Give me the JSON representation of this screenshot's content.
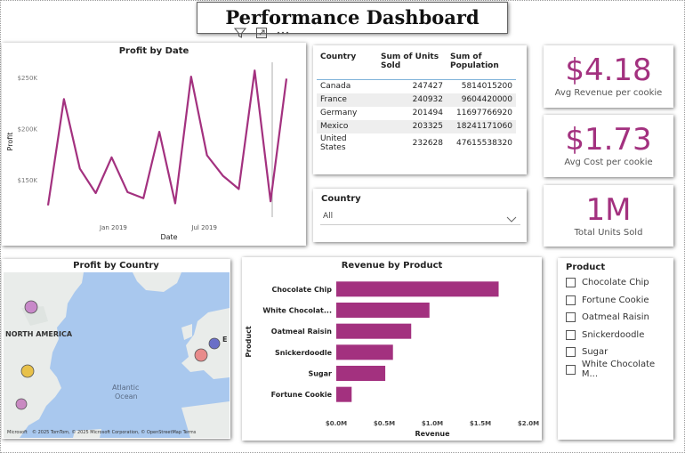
{
  "dashboard": {
    "title": "Performance Dashboard"
  },
  "toolbar": {
    "filter_icon": "filter-icon",
    "focus_icon": "focus-mode-icon",
    "more_icon": "more-options-icon"
  },
  "colors": {
    "accent": "#a3317f",
    "bar": "#a3317f",
    "line": "#a3317f"
  },
  "profit_by_date": {
    "title": "Profit by Date",
    "chart_data": {
      "type": "line",
      "title": "Profit by Date",
      "xlabel": "Date",
      "ylabel": "Profit",
      "x_ticks": [
        "Jan 2019",
        "Jul 2019"
      ],
      "y_ticks": [
        "$250K",
        "$200K",
        "$150K"
      ],
      "y_tick_values": [
        250000,
        200000,
        150000
      ],
      "ylim": [
        110000,
        265000
      ],
      "series": [
        {
          "values": [
            125000,
            229000,
            161000,
            137000,
            172000,
            138000,
            132000,
            197000,
            127000,
            251000,
            174000,
            154000,
            141000,
            257000,
            129000,
            249000
          ]
        }
      ]
    }
  },
  "country_table": {
    "headers": [
      "Country",
      "Sum of Units Sold",
      "Sum of Population"
    ],
    "rows": [
      [
        "Canada",
        "247427",
        "5814015200"
      ],
      [
        "France",
        "240932",
        "9604420000"
      ],
      [
        "Germany",
        "201494",
        "11697766920"
      ],
      [
        "Mexico",
        "203325",
        "18241171060"
      ],
      [
        "United States",
        "232628",
        "47615538320"
      ]
    ]
  },
  "kpis": [
    {
      "value": "$4.18",
      "label": "Avg Revenue per cookie"
    },
    {
      "value": "$1.73",
      "label": "Avg Cost per cookie"
    },
    {
      "value": "1M",
      "label": "Total Units Sold"
    }
  ],
  "country_slicer": {
    "title": "Country",
    "selected": "All"
  },
  "profit_by_country": {
    "title": "Profit by Country",
    "labels": {
      "north_america": "NORTH AMERICA",
      "atlantic": "Atlantic",
      "ocean": "Ocean",
      "europe_partial": "E"
    },
    "attribution": "© 2025 TomTom, © 2025 Microsoft Corporation, © OpenStreetMap Terms",
    "logo": "Microsoft",
    "marker_colors": [
      "#c889c9",
      "#e8c14a",
      "#c98ac2",
      "#6a6fc7",
      "#e88b8b"
    ]
  },
  "revenue_by_product": {
    "title": "Revenue by Product",
    "chart_data": {
      "type": "bar",
      "orientation": "horizontal",
      "title": "Revenue by Product",
      "xlabel": "Revenue",
      "ylabel": "Product",
      "categories": [
        "Chocolate Chip",
        "White Chocolat...",
        "Oatmeal Raisin",
        "Snickerdoodle",
        "Sugar",
        "Fortune Cookie"
      ],
      "values": [
        1690000,
        970000,
        780000,
        590000,
        510000,
        160000
      ],
      "x_ticks": [
        "$0.0M",
        "$0.5M",
        "$1.0M",
        "$1.5M",
        "$2.0M"
      ],
      "x_tick_values": [
        0,
        500000,
        1000000,
        1500000,
        2000000
      ],
      "xlim": [
        0,
        2000000
      ]
    }
  },
  "product_slicer": {
    "title": "Product",
    "items": [
      "Chocolate Chip",
      "Fortune Cookie",
      "Oatmeal Raisin",
      "Snickerdoodle",
      "Sugar",
      "White Chocolate M..."
    ]
  }
}
